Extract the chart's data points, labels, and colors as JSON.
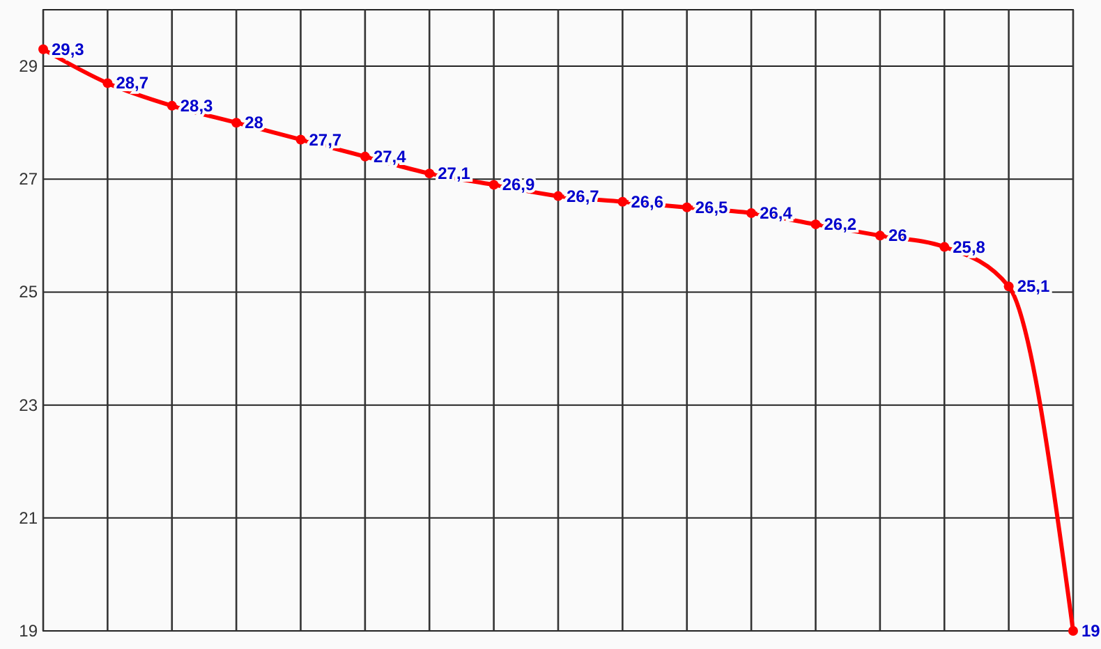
{
  "chart_data": {
    "type": "line",
    "categories": [
      null,
      null,
      null,
      null,
      null,
      null,
      null,
      null,
      null,
      null,
      null,
      null,
      null,
      null,
      null,
      null,
      null
    ],
    "series": [
      {
        "color": "#ff0000",
        "values": [
          29.3,
          28.7,
          28.3,
          28,
          27.7,
          27.4,
          27.1,
          26.9,
          26.7,
          26.6,
          26.5,
          26.4,
          26.2,
          26,
          25.8,
          25.1,
          19
        ],
        "value_labels": [
          "29,3",
          "28,7",
          "28,3",
          "28",
          "27,7",
          "27,4",
          "27,1",
          "26,9",
          "26,7",
          "26,6",
          "26,5",
          "26,4",
          "26,2",
          "26",
          "25,8",
          "25,1",
          "19"
        ]
      }
    ],
    "ylim": [
      19,
      30
    ],
    "yticks": [
      19,
      21,
      23,
      25,
      27,
      29
    ],
    "grid": true,
    "marker": "circle",
    "line_style": "solid"
  }
}
